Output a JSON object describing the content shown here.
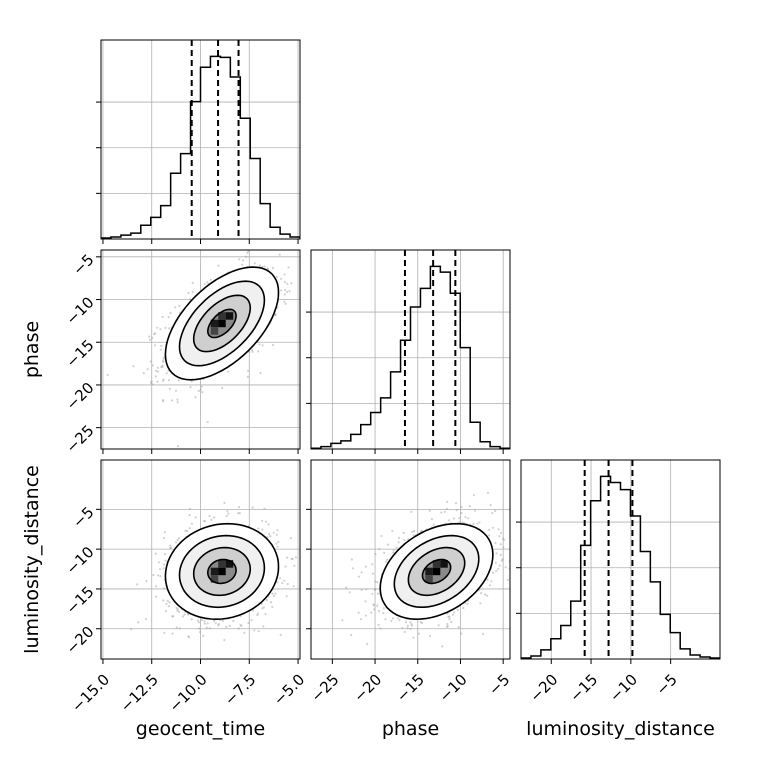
{
  "chart_data": {
    "type": "corner",
    "parameters": [
      "geocent_time",
      "phase",
      "luminosity_distance"
    ],
    "ranges": {
      "geocent_time": [
        -15.1,
        -4.9
      ],
      "phase": [
        -27.5,
        -4.2
      ],
      "luminosity_distance": [
        -23.8,
        1.2
      ]
    },
    "ticks": {
      "geocent_time": [
        "−15.0",
        "−12.5",
        "−10.0",
        "−7.5",
        "−5.0"
      ],
      "phase": [
        "−25",
        "−20",
        "−15",
        "−10",
        "−5"
      ],
      "luminosity_distance": [
        "−20",
        "−15",
        "−10",
        "−5"
      ]
    },
    "tick_values": {
      "geocent_time": [
        -15,
        -12.5,
        -10,
        -7.5,
        -5
      ],
      "phase": [
        -25,
        -20,
        -15,
        -10,
        -5
      ],
      "luminosity_distance": [
        -20,
        -15,
        -10,
        -5
      ]
    },
    "grid": true,
    "histograms": [
      {
        "param": "geocent_time",
        "edges": [
          -15.1,
          -14.59,
          -14.08,
          -13.57,
          -13.06,
          -12.55,
          -12.04,
          -11.53,
          -11.02,
          -10.51,
          -10.0,
          -9.49,
          -8.98,
          -8.47,
          -7.96,
          -7.45,
          -6.94,
          -6.43,
          -5.92,
          -5.41,
          -4.9
        ],
        "counts": [
          1,
          2,
          4,
          6,
          14,
          22,
          34,
          67,
          87,
          140,
          175,
          186,
          185,
          165,
          123,
          82,
          36,
          12,
          5,
          2
        ],
        "quantiles": [
          -10.45,
          -9.1,
          -8.05
        ]
      },
      {
        "param": "phase",
        "edges": [
          -27.5,
          -26.335,
          -25.17,
          -24.005,
          -22.84,
          -21.675,
          -20.51,
          -19.345,
          -18.18,
          -17.015,
          -15.85,
          -14.685,
          -13.52,
          -12.355,
          -11.19,
          -10.025,
          -8.86,
          -7.695,
          -6.53,
          -5.365,
          -4.2
        ],
        "counts": [
          1,
          3,
          7,
          10,
          18,
          30,
          45,
          63,
          95,
          134,
          175,
          198,
          225,
          218,
          192,
          125,
          33,
          9,
          3,
          1
        ],
        "quantiles": [
          -16.5,
          -13.2,
          -10.6
        ]
      },
      {
        "param": "luminosity_distance",
        "edges": [
          -23.8,
          -22.55,
          -21.3,
          -20.05,
          -18.8,
          -17.55,
          -16.3,
          -15.05,
          -13.8,
          -12.55,
          -11.3,
          -10.05,
          -8.8,
          -7.55,
          -6.3,
          -5.05,
          -3.8,
          -2.55,
          -1.3,
          -0.05,
          1.2
        ],
        "counts": [
          1,
          3,
          9,
          20,
          33,
          57,
          112,
          156,
          180,
          174,
          167,
          141,
          106,
          76,
          44,
          26,
          10,
          4,
          2,
          1
        ],
        "quantiles": [
          -15.8,
          -12.8,
          -9.8
        ]
      }
    ],
    "joint": [
      {
        "x": "geocent_time",
        "y": "phase",
        "center": [
          -8.9,
          -12.8
        ],
        "sigma": [
          1.45,
          3.3
        ],
        "rho": 0.55,
        "contour_levels_sigma": [
          0.5,
          1,
          1.5,
          2
        ]
      },
      {
        "x": "geocent_time",
        "y": "luminosity_distance",
        "center": [
          -8.9,
          -12.8
        ],
        "sigma": [
          1.45,
          3.0
        ],
        "rho": 0.1,
        "contour_levels_sigma": [
          0.5,
          1,
          1.5,
          2
        ]
      },
      {
        "x": "phase",
        "y": "luminosity_distance",
        "center": [
          -12.8,
          -12.8
        ],
        "sigma": [
          3.3,
          3.0
        ],
        "rho": 0.35,
        "contour_levels_sigma": [
          0.5,
          1,
          1.5,
          2
        ]
      }
    ],
    "colors": {
      "line": "#000000",
      "grid": "#b0b0b0",
      "scatter": "#9a9a9a",
      "density_dark": "#000000"
    }
  }
}
